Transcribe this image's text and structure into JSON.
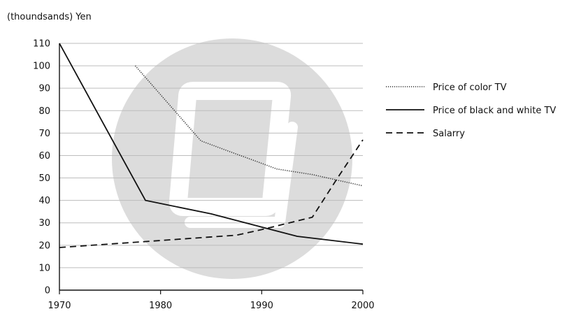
{
  "chart_data": {
    "type": "line",
    "ylabel": "(thoundsands) Yen",
    "xlabel": "",
    "x_ticks": [
      "1970",
      "1980",
      "1990",
      "2000"
    ],
    "y_ticks": [
      "0",
      "10",
      "20",
      "30",
      "40",
      "50",
      "60",
      "70",
      "80",
      "90",
      "100",
      "110"
    ],
    "xlim": [
      1970,
      2000
    ],
    "ylim": [
      0,
      110
    ],
    "grid": "horizontal",
    "legend_position": "right",
    "series": [
      {
        "name": "Price of color TV",
        "style": "dotted",
        "color": "#333333",
        "points": [
          [
            1977.5,
            100
          ],
          [
            1984,
            66.5
          ],
          [
            1991.5,
            54
          ],
          [
            1995,
            51.5
          ],
          [
            2000,
            46.5
          ]
        ]
      },
      {
        "name": "Price of black and white TV",
        "style": "solid",
        "color": "#111111",
        "points": [
          [
            1970,
            110
          ],
          [
            1978.5,
            40
          ],
          [
            1985,
            34
          ],
          [
            1993.5,
            24
          ],
          [
            2000,
            20.5
          ]
        ]
      },
      {
        "name": "Salarry",
        "style": "dashed",
        "color": "#111111",
        "points": [
          [
            1970,
            19
          ],
          [
            1978,
            21.5
          ],
          [
            1987.5,
            24.5
          ],
          [
            1990,
            27
          ],
          [
            1995,
            32.5
          ],
          [
            1997.5,
            50
          ],
          [
            2000,
            67
          ]
        ]
      }
    ]
  },
  "watermark": {
    "icon": "book-watermark-icon",
    "color": "#dedede"
  }
}
